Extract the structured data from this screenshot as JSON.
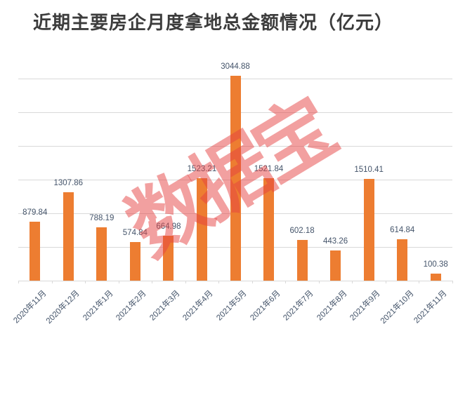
{
  "title": "近期主要房企月度拿地总金额情况（亿元）",
  "watermark": "数据宝",
  "colors": {
    "bar": "#ED7D31",
    "gridline": "#D9D9D9",
    "axis": "#D9D9D9",
    "data_label": "#44546A",
    "title": "#3C3C3C",
    "watermark": "rgba(230,65,65,0.5)"
  },
  "chart_data": {
    "type": "bar",
    "title": "近期主要房企月度拿地总金额情况（亿元）",
    "categories": [
      "2020年11月",
      "2020年12月",
      "2021年1月",
      "2021年2月",
      "2021年3月",
      "2021年4月",
      "2021年5月",
      "2021年6月",
      "2021年7月",
      "2021年8月",
      "2021年9月",
      "2021年10月",
      "2021年11月"
    ],
    "values": [
      879.84,
      1307.86,
      788.19,
      574.84,
      664.98,
      1523.21,
      3044.88,
      1521.84,
      602.18,
      443.26,
      1510.41,
      614.84,
      100.38
    ],
    "xlabel": "",
    "ylabel": "",
    "ylim": [
      0,
      3000
    ],
    "ytick_step": 500,
    "grid": true,
    "y_axis_labels_visible": false,
    "value_labels": true,
    "legend": "none",
    "x_label_rotation_deg": 45
  }
}
